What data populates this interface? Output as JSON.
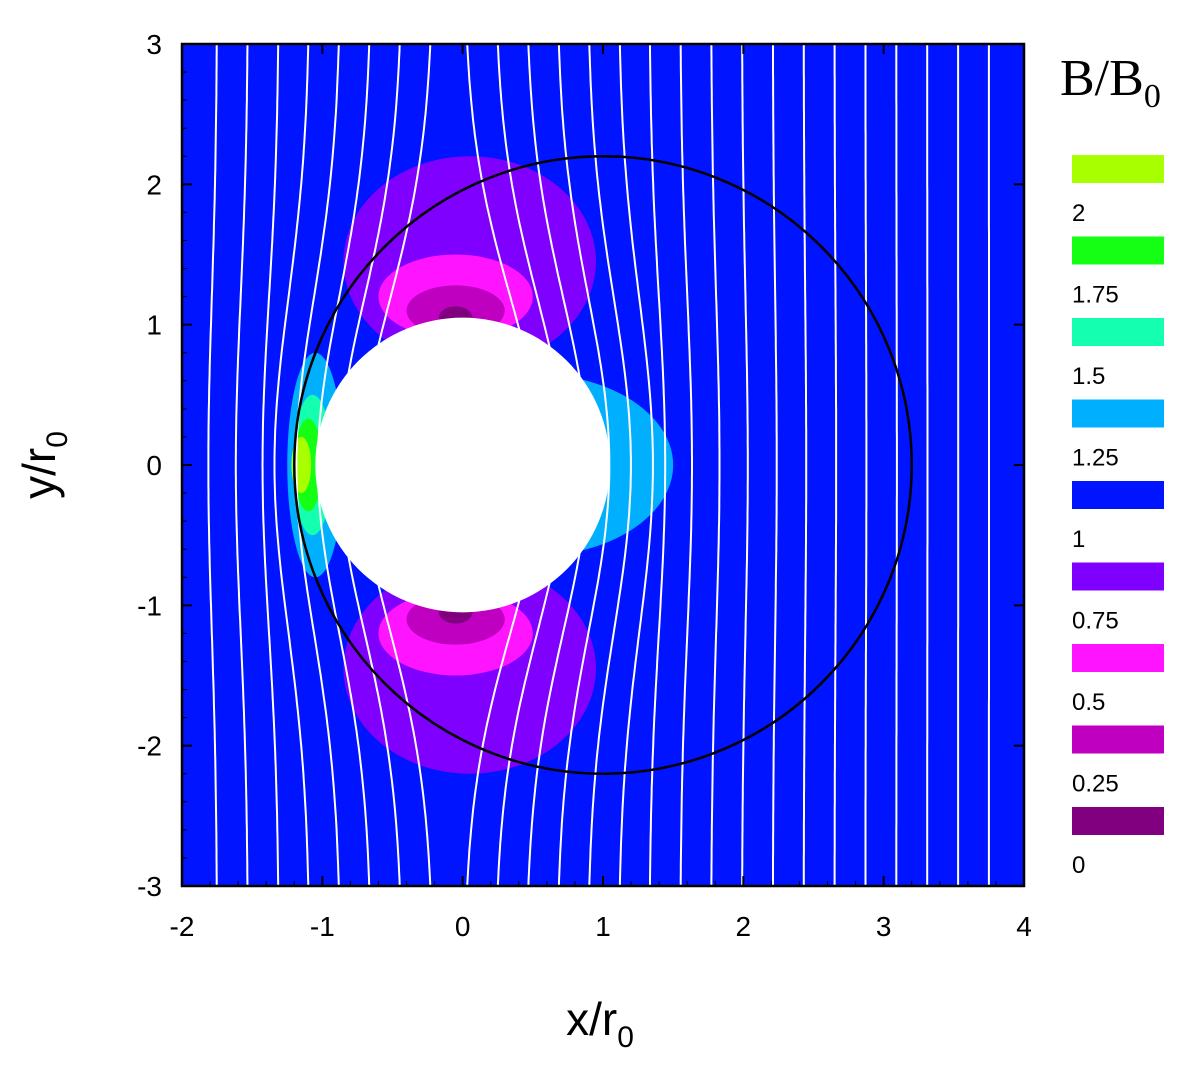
{
  "chart_data": {
    "type": "heatmap",
    "title": "",
    "xlabel_main": "x/r",
    "xlabel_sub": "0",
    "ylabel_main": "y/r",
    "ylabel_sub": "0",
    "xlim": [
      -2,
      4
    ],
    "ylim": [
      -3,
      3
    ],
    "x_ticks": [
      -2,
      -1,
      0,
      1,
      2,
      3,
      4
    ],
    "x_tick_labels": [
      "-2",
      "-1",
      "0",
      "1",
      "2",
      "3",
      "4"
    ],
    "y_ticks": [
      -3,
      -2,
      -1,
      0,
      1,
      2,
      3
    ],
    "y_tick_labels": [
      "-3",
      "-2",
      "-1",
      "0",
      "1",
      "2",
      "3"
    ],
    "background_level": 1,
    "obstacle": {
      "center": [
        0,
        0
      ],
      "radius": 1.05
    },
    "domain_circle": {
      "center": [
        1,
        0
      ],
      "radius": 2.2
    },
    "colorbar": {
      "title_main": "B/B",
      "title_sub": "0",
      "levels": [
        {
          "label": "2",
          "value": 2,
          "color": "#a8ff00"
        },
        {
          "label": "1.75",
          "value": 1.75,
          "color": "#14ff14"
        },
        {
          "label": "1.5",
          "value": 1.5,
          "color": "#14ffb0"
        },
        {
          "label": "1.25",
          "value": 1.25,
          "color": "#00b0ff"
        },
        {
          "label": "1",
          "value": 1,
          "color": "#0014ff"
        },
        {
          "label": "0.75",
          "value": 0.75,
          "color": "#8000ff"
        },
        {
          "label": "0.5",
          "value": 0.5,
          "color": "#ff14ff"
        },
        {
          "label": "0.25",
          "value": 0.25,
          "color": "#c000c0"
        },
        {
          "label": "0",
          "value": 0,
          "color": "#800080"
        }
      ]
    },
    "regions": [
      {
        "level": 0.75,
        "shape": "lobe",
        "center": [
          0.05,
          1.45
        ],
        "rx": 0.9,
        "ry": 0.75
      },
      {
        "level": 0.75,
        "shape": "lobe",
        "center": [
          0.05,
          -1.45
        ],
        "rx": 0.9,
        "ry": 0.75
      },
      {
        "level": 0.5,
        "shape": "ellipse",
        "center": [
          -0.05,
          1.2
        ],
        "rx": 0.55,
        "ry": 0.3
      },
      {
        "level": 0.5,
        "shape": "ellipse",
        "center": [
          -0.05,
          -1.2
        ],
        "rx": 0.55,
        "ry": 0.3
      },
      {
        "level": 0.25,
        "shape": "ellipse",
        "center": [
          -0.05,
          1.1
        ],
        "rx": 0.35,
        "ry": 0.18
      },
      {
        "level": 0.25,
        "shape": "ellipse",
        "center": [
          -0.05,
          -1.1
        ],
        "rx": 0.35,
        "ry": 0.18
      },
      {
        "level": 0,
        "shape": "ellipse",
        "center": [
          -0.05,
          1.05
        ],
        "rx": 0.12,
        "ry": 0.08
      },
      {
        "level": 0,
        "shape": "ellipse",
        "center": [
          -0.05,
          -1.05
        ],
        "rx": 0.12,
        "ry": 0.08
      },
      {
        "level": 1.25,
        "shape": "ellipse",
        "center": [
          0.5,
          0
        ],
        "rx": 1.0,
        "ry": 0.65
      },
      {
        "level": 1.25,
        "shape": "ellipse",
        "center": [
          -1.05,
          0
        ],
        "rx": 0.2,
        "ry": 0.8
      },
      {
        "level": 1.5,
        "shape": "ellipse",
        "center": [
          -1.07,
          0
        ],
        "rx": 0.14,
        "ry": 0.5
      },
      {
        "level": 1.75,
        "shape": "ellipse",
        "center": [
          -1.1,
          0
        ],
        "rx": 0.1,
        "ry": 0.33
      },
      {
        "level": 2,
        "shape": "ellipse",
        "center": [
          -1.15,
          0
        ],
        "rx": 0.07,
        "ry": 0.2
      }
    ],
    "field_lines": {
      "x_start": -1.75,
      "x_end": 3.75,
      "spacing": 0.22,
      "color": "#ffffff"
    }
  }
}
